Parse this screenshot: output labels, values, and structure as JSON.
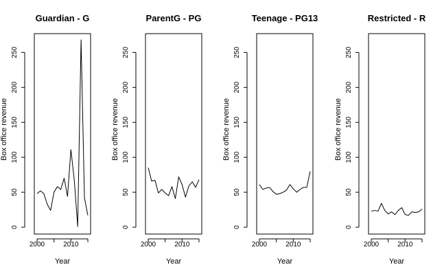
{
  "chart_data": [
    {
      "type": "line",
      "title": "Guardian - G",
      "xlabel": "Year",
      "ylabel": "Box office revenue",
      "xlim": [
        2000,
        2015
      ],
      "ylim": [
        0,
        270
      ],
      "xticks": [
        2000,
        2010
      ],
      "yticks": [
        0,
        50,
        100,
        150,
        200,
        250
      ],
      "grid": false,
      "x": [
        2000,
        2001,
        2002,
        2003,
        2004,
        2005,
        2006,
        2007,
        2008,
        2009,
        2010,
        2011,
        2012,
        2013,
        2014,
        2015
      ],
      "y": [
        48,
        52,
        48,
        33,
        24,
        50,
        58,
        54,
        70,
        44,
        111,
        67,
        1,
        268,
        42,
        17
      ]
    },
    {
      "type": "line",
      "title": "ParentG - PG",
      "xlabel": "Year",
      "ylabel": "Box office revenue",
      "xlim": [
        2000,
        2015
      ],
      "ylim": [
        0,
        270
      ],
      "xticks": [
        2000,
        2010
      ],
      "yticks": [
        0,
        50,
        100,
        150,
        200,
        250
      ],
      "grid": false,
      "x": [
        2000,
        2001,
        2002,
        2003,
        2004,
        2005,
        2006,
        2007,
        2008,
        2009,
        2010,
        2011,
        2012,
        2013,
        2014,
        2015
      ],
      "y": [
        85,
        66,
        67,
        49,
        54,
        49,
        45,
        58,
        41,
        72,
        61,
        43,
        59,
        65,
        57,
        68
      ]
    },
    {
      "type": "line",
      "title": "Teenage - PG13",
      "xlabel": "Year",
      "ylabel": "Box office revenue",
      "xlim": [
        2000,
        2015
      ],
      "ylim": [
        0,
        270
      ],
      "xticks": [
        2000,
        2010
      ],
      "yticks": [
        0,
        50,
        100,
        150,
        200,
        250
      ],
      "grid": false,
      "x": [
        2000,
        2001,
        2002,
        2003,
        2004,
        2005,
        2006,
        2007,
        2008,
        2009,
        2010,
        2011,
        2012,
        2013,
        2014,
        2015
      ],
      "y": [
        61,
        54,
        56,
        57,
        51,
        47,
        48,
        50,
        53,
        61,
        55,
        50,
        54,
        57,
        57,
        80
      ]
    },
    {
      "type": "line",
      "title": "Restricted - R",
      "xlabel": "Year",
      "ylabel": "Box office revenue",
      "xlim": [
        2000,
        2015
      ],
      "ylim": [
        0,
        270
      ],
      "xticks": [
        2000,
        2010
      ],
      "yticks": [
        0,
        50,
        100,
        150,
        200,
        250
      ],
      "grid": false,
      "x": [
        2000,
        2001,
        2002,
        2003,
        2004,
        2005,
        2006,
        2007,
        2008,
        2009,
        2010,
        2011,
        2012,
        2013,
        2014,
        2015
      ],
      "y": [
        23,
        24,
        23,
        34,
        24,
        19,
        22,
        18,
        24,
        28,
        18,
        17,
        22,
        21,
        22,
        26
      ]
    }
  ],
  "colors": {
    "line": "#000000",
    "axis": "#000000",
    "background": "#ffffff"
  }
}
